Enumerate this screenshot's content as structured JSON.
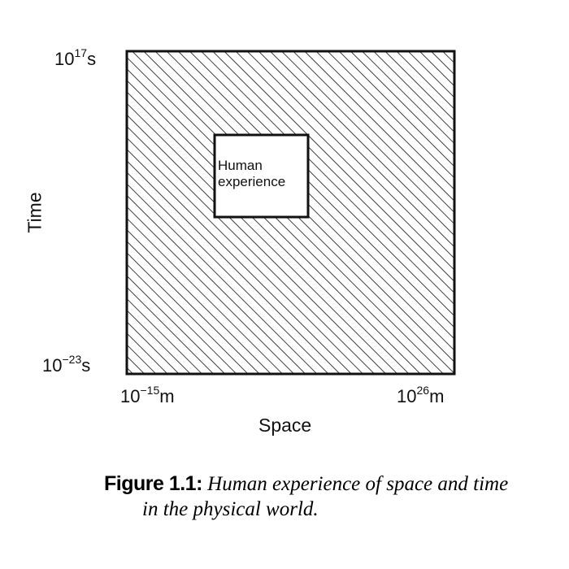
{
  "diagram": {
    "y_axis": {
      "title": "Time",
      "max": {
        "base": "10",
        "exp": "17",
        "unit": "s"
      },
      "min": {
        "base": "10",
        "exp": "−23",
        "unit": "s"
      }
    },
    "x_axis": {
      "title": "Space",
      "min": {
        "base": "10",
        "exp": "−15",
        "unit": "m"
      },
      "max": {
        "base": "10",
        "exp": "26",
        "unit": "m"
      }
    },
    "region_label_line1": "Human",
    "region_label_line2": "experience",
    "fill_style": "diagonal-hatch",
    "line_color": "#111111"
  },
  "caption": {
    "label": "Figure 1.1:",
    "line1": "Human experience of space and time",
    "line2": "in the physical world."
  }
}
